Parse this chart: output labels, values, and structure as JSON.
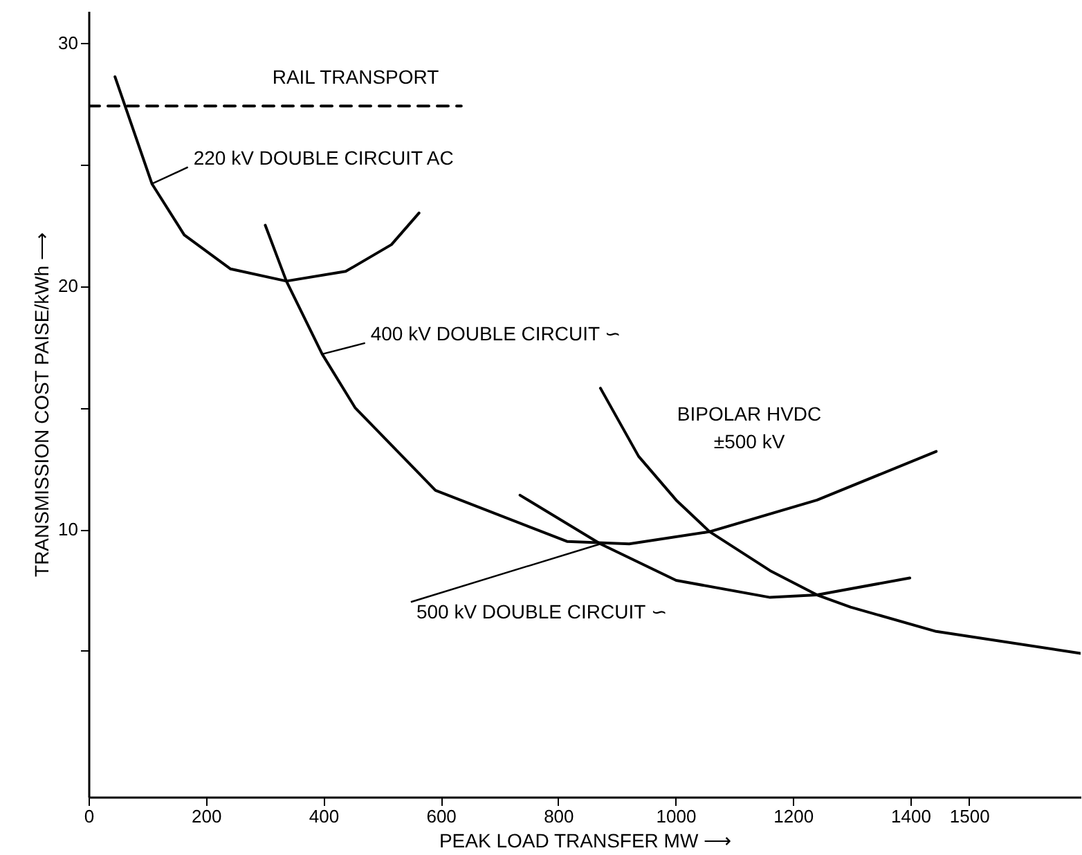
{
  "chart_data": {
    "type": "line",
    "xlabel": "PEAK LOAD TRANSFER  MW ⟶",
    "ylabel": "TRANSMISSION COST  PAISE/kWh ⟶",
    "xlim": [
      0,
      1690
    ],
    "ylim": [
      -1,
      31.3
    ],
    "xticks": [
      0,
      200,
      400,
      600,
      800,
      1000,
      1200,
      1400,
      1500
    ],
    "yticks": [
      {
        "value": 5,
        "label": null
      },
      10,
      {
        "value": 15,
        "label": null
      },
      20,
      {
        "value": 25,
        "label": null
      },
      30
    ],
    "grid": false,
    "marker": "none",
    "series": [
      {
        "name": "RAIL TRANSPORT",
        "color": "#000000",
        "line_style": "dashed",
        "x": [
          0,
          635
        ],
        "values": [
          27.4,
          27.4
        ]
      },
      {
        "name": "220 kV  DOUBLE CIRCUIT  AC",
        "color": "#000000",
        "x": [
          45,
          108,
          163,
          242,
          337,
          438,
          516,
          563
        ],
        "values": [
          28.6,
          24.2,
          22.1,
          20.7,
          20.2,
          20.6,
          21.7,
          23.0
        ]
      },
      {
        "name": "400 kV DOUBLE CIRCUIT ∽",
        "color": "#000000",
        "x": [
          301,
          337,
          398,
          454,
          591,
          815,
          921,
          1058,
          1241,
          1444
        ],
        "values": [
          22.5,
          20.2,
          17.2,
          15.0,
          11.6,
          9.5,
          9.4,
          9.9,
          11.2,
          13.2
        ]
      },
      {
        "name": "BIPOLAR  HVDC\n±500 kV",
        "color": "#000000",
        "x": [
          872,
          937,
          1001,
          1058,
          1161,
          1241,
          1298,
          1444,
          1690
        ],
        "values": [
          15.8,
          13.0,
          11.2,
          9.9,
          8.3,
          7.3,
          6.8,
          5.8,
          4.9
        ]
      },
      {
        "name": "500 kV DOUBLE CIRCUIT ∽",
        "color": "#000000",
        "x": [
          735,
          872,
          1001,
          1161,
          1241,
          1399
        ],
        "values": [
          11.4,
          9.4,
          7.9,
          7.2,
          7.3,
          8.0
        ]
      }
    ]
  }
}
